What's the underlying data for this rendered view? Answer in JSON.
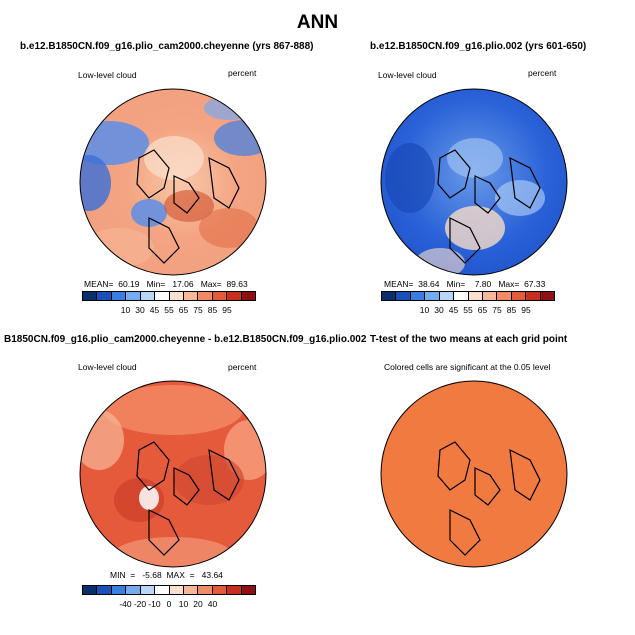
{
  "title": "ANN",
  "panels": [
    {
      "title": "b.e12.B1850CN.f09_g16.plio_cam2000.cheyenne (yrs 867-888)",
      "left_label": "Low-level cloud",
      "right_label": "percent",
      "stats": "MEAN=  60.19   Min=   17.06   Max=  89.63",
      "colorbar_ticks": [
        "10",
        "30",
        "45",
        "55",
        "65",
        "75",
        "85",
        "95"
      ]
    },
    {
      "title": "b.e12.B1850CN.f09_g16.plio.002 (yrs 601-650)",
      "left_label": "Low-level cloud",
      "right_label": "percent",
      "stats": "MEAN=  38.64   Min=    7.80   Max=  67.33",
      "colorbar_ticks": [
        "10",
        "30",
        "45",
        "55",
        "65",
        "75",
        "85",
        "95"
      ]
    },
    {
      "title": "B1850CN.f09_g16.plio_cam2000.cheyenne - b.e12.B1850CN.f09_g16.plio.002",
      "left_label": "Low-level cloud",
      "right_label": "percent",
      "stats": "MIN  =   -5.68  MAX  =   43.64",
      "colorbar_ticks": [
        "-40",
        "-20",
        "-10",
        "0",
        "10",
        "20",
        "40"
      ]
    },
    {
      "title": "T-test of the two means at each grid point",
      "left_label": "Colored cells are significant at the 0.05 level",
      "right_label": "",
      "stats": "",
      "colorbar_ticks": []
    }
  ],
  "colors": {
    "abs_scale": [
      "#08306b",
      "#1a50b8",
      "#3a7ee0",
      "#74acf0",
      "#b8d6f8",
      "#ffffff",
      "#fbe0cf",
      "#f8b898",
      "#f28a63",
      "#e55a3a",
      "#c8301e",
      "#8e1010"
    ],
    "diff_scale": [
      "#08306b",
      "#1a50b8",
      "#3a7ee0",
      "#74acf0",
      "#b8d6f8",
      "#ffffff",
      "#fbe0cf",
      "#f8b898",
      "#f28a63",
      "#e55a3a",
      "#c8301e",
      "#8e1010"
    ],
    "ttest_fill": "#f07a40"
  }
}
